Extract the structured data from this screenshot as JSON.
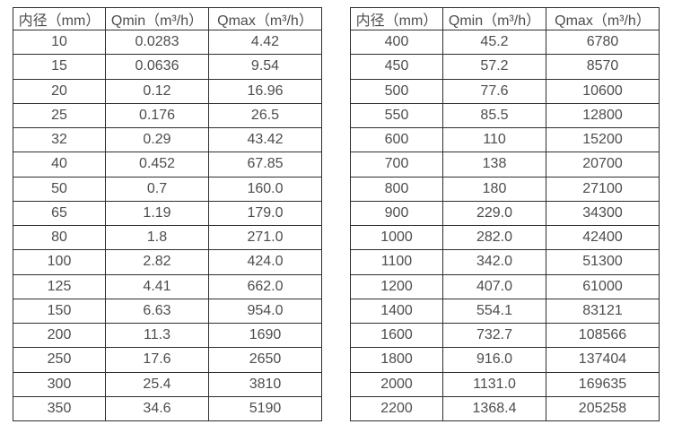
{
  "page": {
    "background_color": "#ffffff",
    "text_color": "#4d4d4d",
    "border_color": "#2e2e2e"
  },
  "tables": [
    {
      "name": "flow-table-small-diameters",
      "headers": [
        "内径（mm）",
        "Qmin（m³/h）",
        "Qmax（m³/h）"
      ],
      "rows": [
        [
          "10",
          "0.0283",
          "4.42"
        ],
        [
          "15",
          "0.0636",
          "9.54"
        ],
        [
          "20",
          "0.12",
          "16.96"
        ],
        [
          "25",
          "0.176",
          "26.5"
        ],
        [
          "32",
          "0.29",
          "43.42"
        ],
        [
          "40",
          "0.452",
          "67.85"
        ],
        [
          "50",
          "0.7",
          "160.0"
        ],
        [
          "65",
          "1.19",
          "179.0"
        ],
        [
          "80",
          "1.8",
          "271.0"
        ],
        [
          "100",
          "2.82",
          "424.0"
        ],
        [
          "125",
          "4.41",
          "662.0"
        ],
        [
          "150",
          "6.63",
          "954.0"
        ],
        [
          "200",
          "11.3",
          "1690"
        ],
        [
          "250",
          "17.6",
          "2650"
        ],
        [
          "300",
          "25.4",
          "3810"
        ],
        [
          "350",
          "34.6",
          "5190"
        ]
      ]
    },
    {
      "name": "flow-table-large-diameters",
      "headers": [
        "内径（mm）",
        "Qmin（m³/h）",
        "Qmax（m³/h）"
      ],
      "rows": [
        [
          "400",
          "45.2",
          "6780"
        ],
        [
          "450",
          "57.2",
          "8570"
        ],
        [
          "500",
          "77.6",
          "10600"
        ],
        [
          "550",
          "85.5",
          "12800"
        ],
        [
          "600",
          "110",
          "15200"
        ],
        [
          "700",
          "138",
          "20700"
        ],
        [
          "800",
          "180",
          "27100"
        ],
        [
          "900",
          "229.0",
          "34300"
        ],
        [
          "1000",
          "282.0",
          "42400"
        ],
        [
          "1100",
          "342.0",
          "51300"
        ],
        [
          "1200",
          "407.0",
          "61000"
        ],
        [
          "1400",
          "554.1",
          "83121"
        ],
        [
          "1600",
          "732.7",
          "108566"
        ],
        [
          "1800",
          "916.0",
          "137404"
        ],
        [
          "2000",
          "1131.0",
          "169635"
        ],
        [
          "2200",
          "1368.4",
          "205258"
        ]
      ]
    }
  ]
}
